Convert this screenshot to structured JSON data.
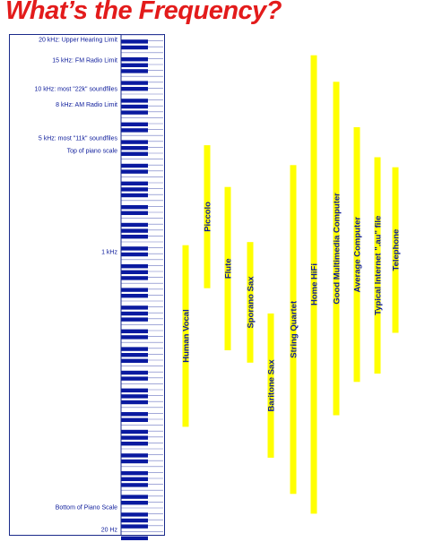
{
  "title": "What’s the Frequency?",
  "colors": {
    "title": "#e31b1b",
    "bars": "#ffff00",
    "keys_black": "#0a1aa0",
    "labels": "#0b1a9a",
    "frame": "#1a2a8a"
  },
  "frequency_labels": [
    {
      "hz": 20000,
      "label": "20 kHz: Upper Hearing Limit"
    },
    {
      "hz": 15000,
      "label": "15 kHz: FM Radio Limit"
    },
    {
      "hz": 10000,
      "label": "10 kHz: most \"22k\" soundfiles"
    },
    {
      "hz": 8000,
      "label": "8 kHz: AM Radio Limit"
    },
    {
      "hz": 5000,
      "label": "5 kHz: most \"11k\" soundfiles"
    },
    {
      "hz": 4186,
      "label": "Top of piano scale"
    },
    {
      "hz": 1000,
      "label": "1 kHz"
    },
    {
      "hz": 27.5,
      "label": "Bottom of Piano Scale"
    },
    {
      "hz": 20,
      "label": "20 Hz"
    }
  ],
  "chart_data": {
    "type": "range-bar",
    "scale": "log",
    "ylim_hz": [
      20,
      20000
    ],
    "ranges": [
      {
        "name": "Human Vocal",
        "low_hz": 85,
        "high_hz": 1100
      },
      {
        "name": "Piccolo",
        "low_hz": 600,
        "high_hz": 4500
      },
      {
        "name": "Flute",
        "low_hz": 250,
        "high_hz": 2500
      },
      {
        "name": "Sporano Sax",
        "low_hz": 210,
        "high_hz": 1150
      },
      {
        "name": "Baritone Sax",
        "low_hz": 55,
        "high_hz": 420
      },
      {
        "name": "String Quartet",
        "low_hz": 33,
        "high_hz": 3400
      },
      {
        "name": "Home HiFi",
        "low_hz": 25,
        "high_hz": 16000
      },
      {
        "name": "Good Multimedia Computer",
        "low_hz": 100,
        "high_hz": 11000
      },
      {
        "name": "Average Computer",
        "low_hz": 160,
        "high_hz": 5800
      },
      {
        "name": "Typical Internet \".au\" file",
        "low_hz": 180,
        "high_hz": 3800
      },
      {
        "name": "Telephone",
        "low_hz": 320,
        "high_hz": 3300
      }
    ]
  }
}
